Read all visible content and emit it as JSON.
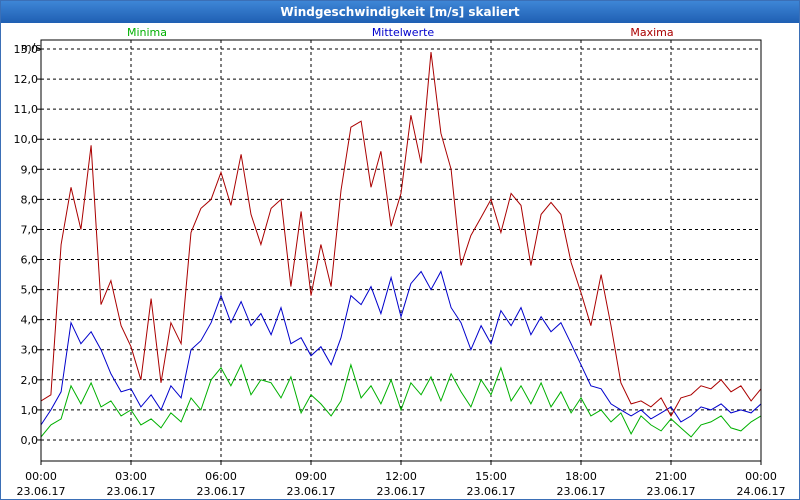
{
  "window": {
    "title": "Windgeschwindigkeit [m/s] skaliert"
  },
  "chart_data": {
    "type": "line",
    "title": "Windgeschwindigkeit [m/s] skaliert",
    "ylabel": "m/s",
    "ylim": [
      -0.7,
      13.3
    ],
    "xlim": [
      0,
      24
    ],
    "yticks": [
      "0,0",
      "1,0",
      "2,0",
      "3,0",
      "4,0",
      "5,0",
      "6,0",
      "7,0",
      "8,0",
      "9,0",
      "10,0",
      "11,0",
      "12,0",
      "13,0"
    ],
    "xticks": [
      {
        "time": "00:00",
        "date": "23.06.17"
      },
      {
        "time": "03:00",
        "date": "23.06.17"
      },
      {
        "time": "06:00",
        "date": "23.06.17"
      },
      {
        "time": "09:00",
        "date": "23.06.17"
      },
      {
        "time": "12:00",
        "date": "23.06.17"
      },
      {
        "time": "15:00",
        "date": "23.06.17"
      },
      {
        "time": "18:00",
        "date": "23.06.17"
      },
      {
        "time": "21:00",
        "date": "23.06.17"
      },
      {
        "time": "00:00",
        "date": "24.06.17"
      }
    ],
    "grid": true,
    "legend_position": "top",
    "series": [
      {
        "name": "Minima",
        "color": "#00b000",
        "x": [
          0,
          0.33,
          0.67,
          1,
          1.33,
          1.67,
          2,
          2.33,
          2.67,
          3,
          3.33,
          3.67,
          4,
          4.33,
          4.67,
          5,
          5.33,
          5.67,
          6,
          6.33,
          6.67,
          7,
          7.33,
          7.67,
          8,
          8.33,
          8.67,
          9,
          9.33,
          9.67,
          10,
          10.33,
          10.67,
          11,
          11.33,
          11.67,
          12,
          12.33,
          12.67,
          13,
          13.33,
          13.67,
          14,
          14.33,
          14.67,
          15,
          15.33,
          15.67,
          16,
          16.33,
          16.67,
          17,
          17.33,
          17.67,
          18,
          18.33,
          18.67,
          19,
          19.33,
          19.67,
          20,
          20.33,
          20.67,
          21,
          21.33,
          21.67,
          22,
          22.33,
          22.67,
          23,
          23.33,
          23.67,
          24
        ],
        "y": [
          0.1,
          0.5,
          0.7,
          1.8,
          1.2,
          1.9,
          1.1,
          1.3,
          0.8,
          1.0,
          0.5,
          0.7,
          0.4,
          0.9,
          0.6,
          1.4,
          1.0,
          2.0,
          2.4,
          1.8,
          2.5,
          1.5,
          2.0,
          1.9,
          1.4,
          2.1,
          0.9,
          1.5,
          1.2,
          0.8,
          1.3,
          2.5,
          1.4,
          1.8,
          1.2,
          2.0,
          1.0,
          1.9,
          1.5,
          2.1,
          1.3,
          2.2,
          1.6,
          1.1,
          2.0,
          1.5,
          2.4,
          1.3,
          1.8,
          1.2,
          1.9,
          1.1,
          1.6,
          0.9,
          1.4,
          0.8,
          1.0,
          0.6,
          0.9,
          0.2,
          0.8,
          0.5,
          0.3,
          0.7,
          0.4,
          0.1,
          0.5,
          0.6,
          0.8,
          0.4,
          0.3,
          0.6,
          0.8
        ]
      },
      {
        "name": "Mittelwerte",
        "color": "#0000cc",
        "x": [
          0,
          0.33,
          0.67,
          1,
          1.33,
          1.67,
          2,
          2.33,
          2.67,
          3,
          3.33,
          3.67,
          4,
          4.33,
          4.67,
          5,
          5.33,
          5.67,
          6,
          6.33,
          6.67,
          7,
          7.33,
          7.67,
          8,
          8.33,
          8.67,
          9,
          9.33,
          9.67,
          10,
          10.33,
          10.67,
          11,
          11.33,
          11.67,
          12,
          12.33,
          12.67,
          13,
          13.33,
          13.67,
          14,
          14.33,
          14.67,
          15,
          15.33,
          15.67,
          16,
          16.33,
          16.67,
          17,
          17.33,
          17.67,
          18,
          18.33,
          18.67,
          19,
          19.33,
          19.67,
          20,
          20.33,
          20.67,
          21,
          21.33,
          21.67,
          22,
          22.33,
          22.67,
          23,
          23.33,
          23.67,
          24
        ],
        "y": [
          0.5,
          1.0,
          1.6,
          3.9,
          3.2,
          3.6,
          3.0,
          2.2,
          1.6,
          1.7,
          1.1,
          1.5,
          1.0,
          1.8,
          1.4,
          3.0,
          3.3,
          3.9,
          4.8,
          3.9,
          4.6,
          3.8,
          4.2,
          3.5,
          4.4,
          3.2,
          3.4,
          2.8,
          3.1,
          2.5,
          3.4,
          4.8,
          4.5,
          5.1,
          4.2,
          5.4,
          4.1,
          5.2,
          5.6,
          5.0,
          5.6,
          4.4,
          3.9,
          3.0,
          3.8,
          3.2,
          4.3,
          3.8,
          4.4,
          3.5,
          4.1,
          3.6,
          3.9,
          3.2,
          2.5,
          1.8,
          1.7,
          1.2,
          1.0,
          0.8,
          1.0,
          0.7,
          0.9,
          1.1,
          0.6,
          0.8,
          1.1,
          1.0,
          1.2,
          0.9,
          1.0,
          0.9,
          1.2
        ]
      },
      {
        "name": "Maxima",
        "color": "#aa0000",
        "x": [
          0,
          0.33,
          0.67,
          1,
          1.33,
          1.67,
          2,
          2.33,
          2.67,
          3,
          3.33,
          3.67,
          4,
          4.33,
          4.67,
          5,
          5.33,
          5.67,
          6,
          6.33,
          6.67,
          7,
          7.33,
          7.67,
          8,
          8.33,
          8.67,
          9,
          9.33,
          9.67,
          10,
          10.33,
          10.67,
          11,
          11.33,
          11.67,
          12,
          12.33,
          12.67,
          13,
          13.33,
          13.67,
          14,
          14.33,
          14.67,
          15,
          15.33,
          15.67,
          16,
          16.33,
          16.67,
          17,
          17.33,
          17.67,
          18,
          18.33,
          18.67,
          19,
          19.33,
          19.67,
          20,
          20.33,
          20.67,
          21,
          21.33,
          21.67,
          22,
          22.33,
          22.67,
          23,
          23.33,
          23.67,
          24
        ],
        "y": [
          1.3,
          1.5,
          6.5,
          8.4,
          7.0,
          9.8,
          4.5,
          5.3,
          3.8,
          3.1,
          2.0,
          4.7,
          1.9,
          3.9,
          3.2,
          6.9,
          7.7,
          8.0,
          8.9,
          7.8,
          9.5,
          7.5,
          6.5,
          7.7,
          8.0,
          5.1,
          7.6,
          4.8,
          6.5,
          5.1,
          8.3,
          10.4,
          10.6,
          8.4,
          9.6,
          7.1,
          8.2,
          10.8,
          9.2,
          12.9,
          10.2,
          9.0,
          5.8,
          6.8,
          7.4,
          8.0,
          6.9,
          8.2,
          7.8,
          5.8,
          7.5,
          7.9,
          7.5,
          5.9,
          4.9,
          3.8,
          5.5,
          3.8,
          1.9,
          1.2,
          1.3,
          1.1,
          1.4,
          0.8,
          1.4,
          1.5,
          1.8,
          1.7,
          2.0,
          1.6,
          1.8,
          1.3,
          1.7
        ]
      }
    ]
  }
}
